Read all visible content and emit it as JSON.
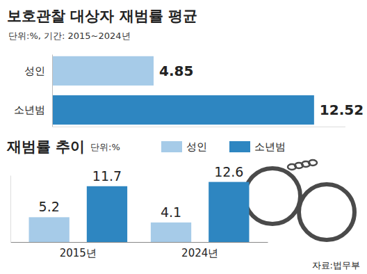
{
  "chart_data": [
    {
      "type": "bar",
      "title": "보호관찰 대상자 재범률 평균",
      "subtitle": "단위:%, 기간: 2015~2024년",
      "orientation": "horizontal",
      "categories": [
        "성인",
        "소년범"
      ],
      "values": [
        4.85,
        12.52
      ],
      "colors": [
        "#a6cbe8",
        "#2e86c1"
      ],
      "data_labels": true,
      "xlim": [
        0,
        14
      ],
      "xticks": [],
      "tick_labels": "y"
    },
    {
      "type": "bar",
      "title": "재범률 추이",
      "subtitle": "단위:%",
      "categories": [
        "2015년",
        "2024년"
      ],
      "series": [
        {
          "name": "성인",
          "color": "#a6cbe8",
          "values": [
            5.2,
            4.1
          ]
        },
        {
          "name": "소년범",
          "color": "#2e86c1",
          "values": [
            11.7,
            12.6
          ]
        }
      ],
      "data_labels": true,
      "ylim": [
        0,
        14
      ],
      "yticks": [],
      "tick_labels": "x",
      "legend": "top",
      "annotations": [
        "자료:법무부"
      ]
    }
  ]
}
